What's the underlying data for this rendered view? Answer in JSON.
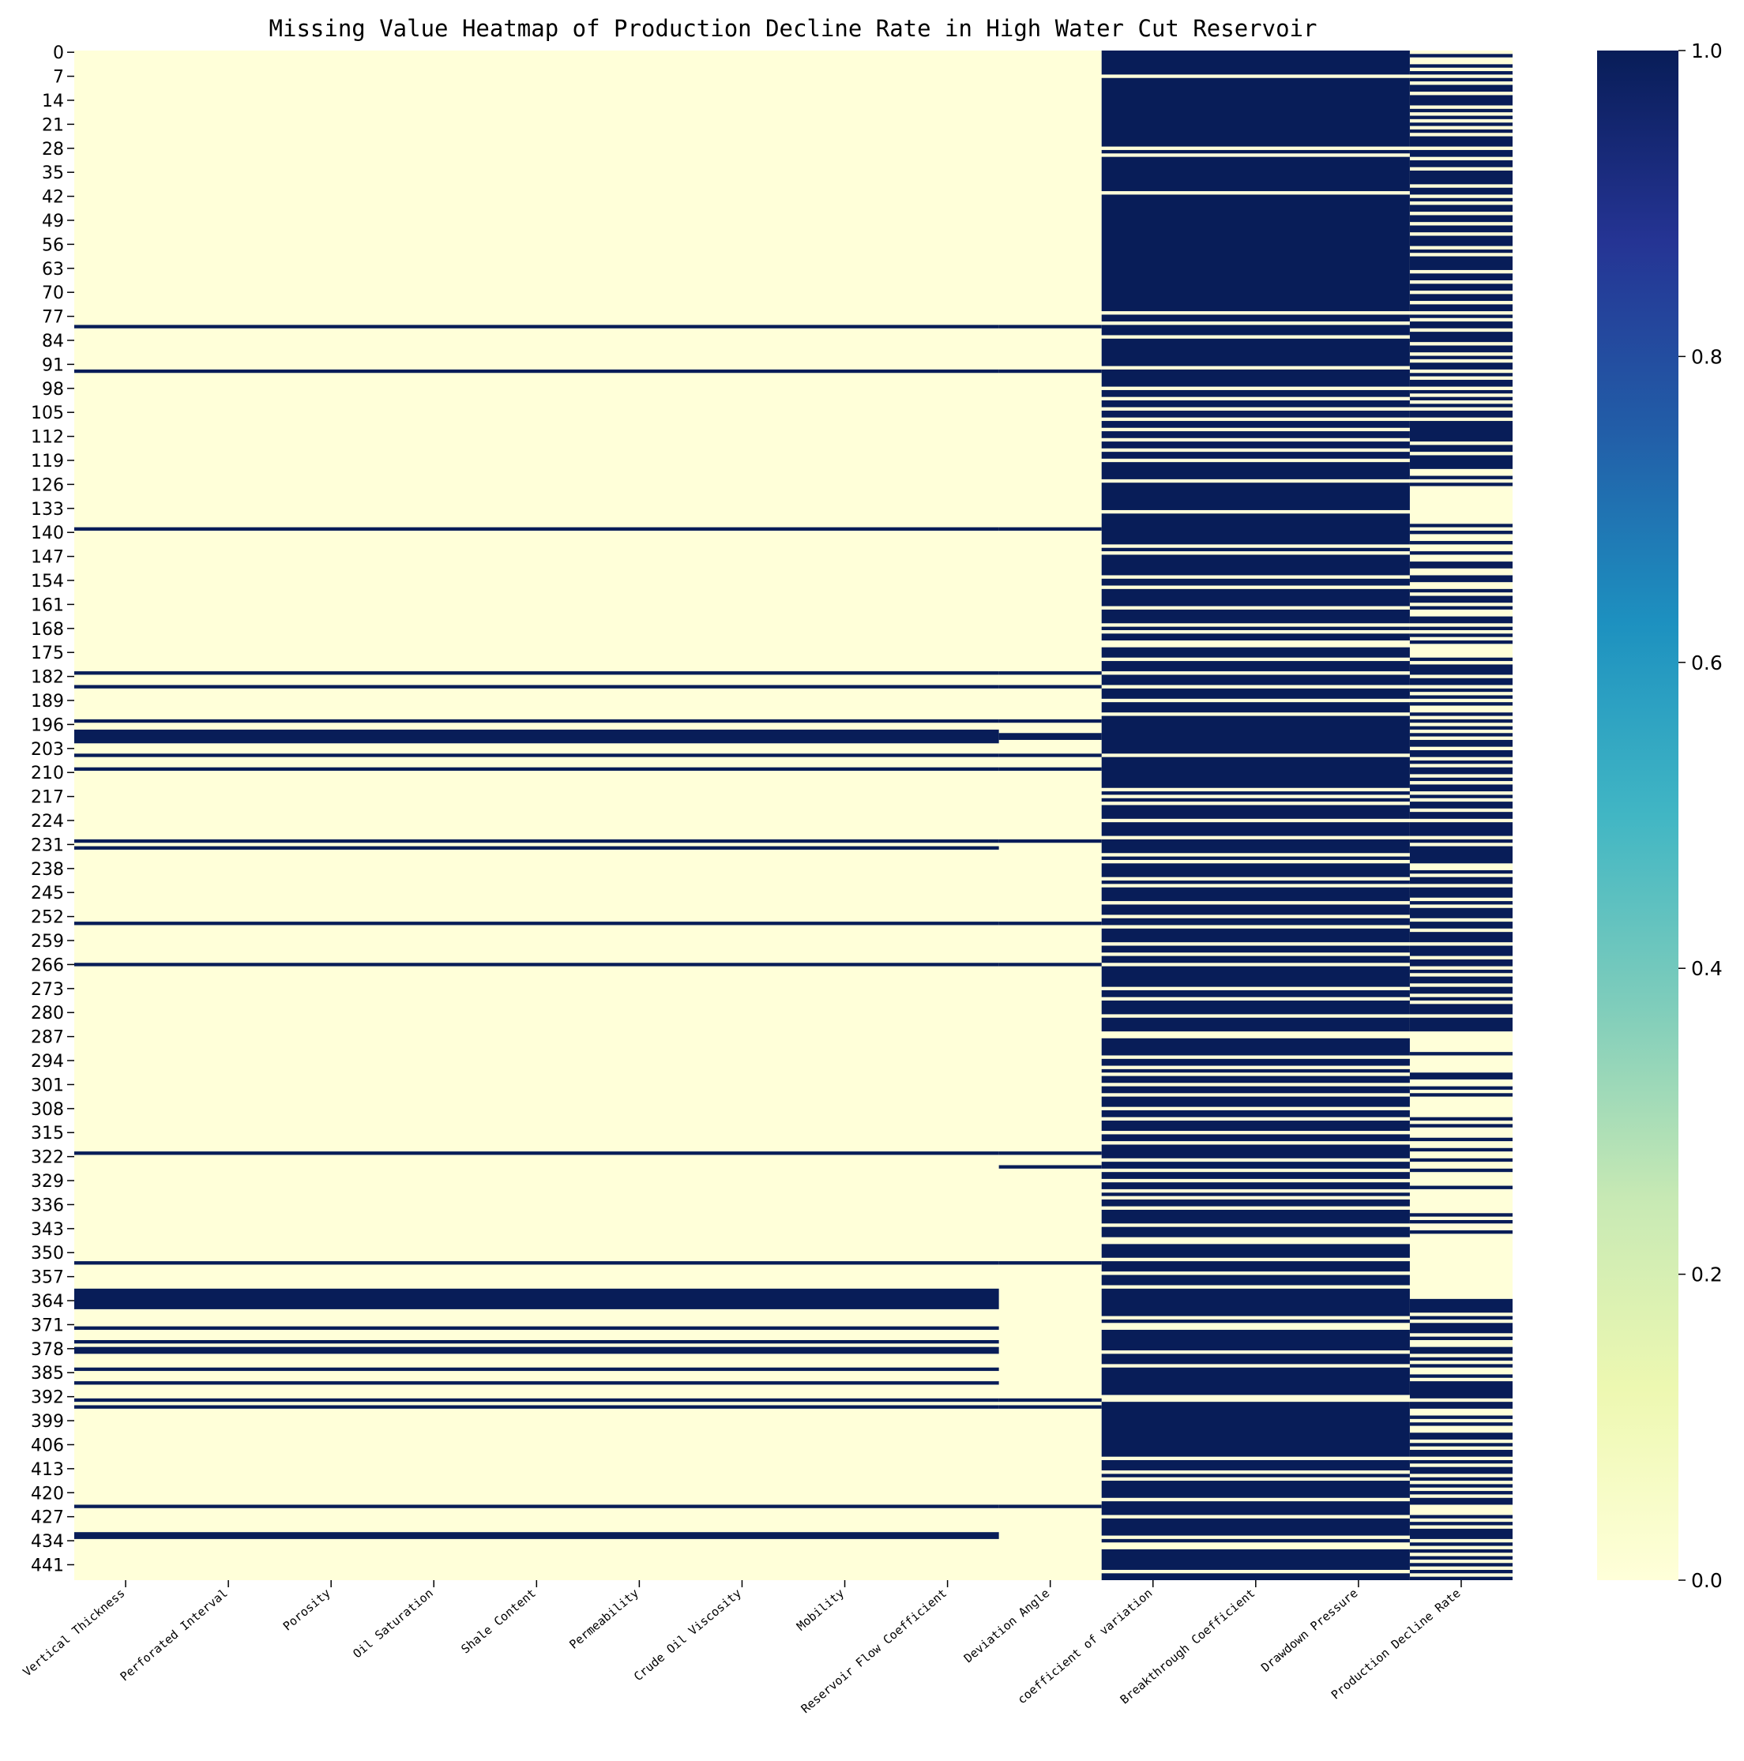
{
  "chart_data": {
    "type": "heatmap",
    "title": "Missing Value Heatmap of Production Decline Rate in High Water Cut Reservoir",
    "n_rows": 446,
    "columns": [
      "Vertical Thickness",
      "Perforated Interval",
      "Porosity",
      "Oil Saturation",
      "Shale Content",
      "Permeability",
      "Crude Oil Viscosity",
      "Mobility",
      "Reservoir Flow Coefficient",
      "Deviation Angle",
      "coefficient of variation",
      "Breakthrough Coefficient",
      "Drawdown Pressure",
      "Production Decline Rate"
    ],
    "y_tick_labels": [
      "0",
      "7",
      "14",
      "21",
      "28",
      "35",
      "42",
      "49",
      "56",
      "63",
      "70",
      "77",
      "84",
      "91",
      "98",
      "105",
      "112",
      "119",
      "126",
      "133",
      "140",
      "147",
      "154",
      "161",
      "168",
      "175",
      "182",
      "189",
      "196",
      "203",
      "210",
      "217",
      "224",
      "231",
      "238",
      "245",
      "252",
      "259",
      "266",
      "273",
      "280",
      "287",
      "294",
      "301",
      "308",
      "315",
      "322",
      "329",
      "336",
      "343",
      "350",
      "357",
      "364",
      "371",
      "378",
      "385",
      "392",
      "399",
      "406",
      "413",
      "420",
      "427",
      "434",
      "441"
    ],
    "colorbar": {
      "colormap": "YlGnBu",
      "vmin": 0.0,
      "vmax": 1.0,
      "tick_labels": [
        "0.0",
        "0.2",
        "0.4",
        "0.6",
        "0.8",
        "1.0"
      ],
      "stops": [
        "#ffffd9",
        "#edf8b1",
        "#c7e9b4",
        "#7fcdbb",
        "#41b6c4",
        "#1d91c0",
        "#225ea8",
        "#253494",
        "#081d58"
      ]
    },
    "colors": {
      "present": "#ffffd9",
      "missing": "#081d58"
    },
    "note": "Value 1 = missing, 0 = present. Each group lists [start_row, end_row] ranges of missing values.",
    "groups": [
      {
        "name": "Vertical Thickness to Reservoir Flow Coefficient",
        "columns": [
          0,
          1,
          2,
          3,
          4,
          5,
          6,
          7,
          8
        ],
        "missing": [
          [
            80,
            80
          ],
          [
            93,
            93
          ],
          [
            139,
            139
          ],
          [
            181,
            181
          ],
          [
            185,
            185
          ],
          [
            195,
            195
          ],
          [
            198,
            201
          ],
          [
            205,
            205
          ],
          [
            209,
            209
          ],
          [
            230,
            230
          ],
          [
            232,
            232
          ],
          [
            254,
            254
          ],
          [
            266,
            266
          ],
          [
            321,
            321
          ],
          [
            353,
            353
          ],
          [
            361,
            366
          ],
          [
            372,
            372
          ],
          [
            376,
            376
          ],
          [
            378,
            379
          ],
          [
            384,
            384
          ],
          [
            388,
            388
          ],
          [
            393,
            393
          ],
          [
            395,
            395
          ],
          [
            424,
            424
          ],
          [
            432,
            433
          ]
        ]
      },
      {
        "name": "Deviation Angle",
        "columns": [
          9
        ],
        "missing": [
          [
            80,
            80
          ],
          [
            93,
            93
          ],
          [
            139,
            139
          ],
          [
            181,
            181
          ],
          [
            185,
            185
          ],
          [
            195,
            195
          ],
          [
            199,
            200
          ],
          [
            205,
            205
          ],
          [
            209,
            209
          ],
          [
            230,
            230
          ],
          [
            254,
            254
          ],
          [
            266,
            266
          ],
          [
            321,
            321
          ],
          [
            325,
            325
          ],
          [
            353,
            353
          ],
          [
            393,
            393
          ],
          [
            395,
            395
          ],
          [
            424,
            424
          ]
        ]
      },
      {
        "name": "coefficient of variation to Drawdown Pressure",
        "columns": [
          10,
          11,
          12
        ],
        "missing": [
          [
            0,
            6
          ],
          [
            8,
            27
          ],
          [
            29,
            29
          ],
          [
            31,
            40
          ],
          [
            42,
            75
          ],
          [
            77,
            78
          ],
          [
            80,
            82
          ],
          [
            84,
            91
          ],
          [
            93,
            97
          ],
          [
            99,
            100
          ],
          [
            102,
            103
          ],
          [
            105,
            106
          ],
          [
            108,
            109
          ],
          [
            111,
            112
          ],
          [
            114,
            115
          ],
          [
            117,
            118
          ],
          [
            120,
            124
          ],
          [
            126,
            133
          ],
          [
            135,
            143
          ],
          [
            145,
            145
          ],
          [
            147,
            152
          ],
          [
            154,
            155
          ],
          [
            157,
            161
          ],
          [
            163,
            166
          ],
          [
            168,
            168
          ],
          [
            170,
            171
          ],
          [
            174,
            176
          ],
          [
            178,
            180
          ],
          [
            182,
            184
          ],
          [
            186,
            188
          ],
          [
            190,
            192
          ],
          [
            194,
            204
          ],
          [
            206,
            214
          ],
          [
            216,
            216
          ],
          [
            218,
            218
          ],
          [
            220,
            223
          ],
          [
            225,
            228
          ],
          [
            230,
            233
          ],
          [
            235,
            235
          ],
          [
            237,
            240
          ],
          [
            242,
            242
          ],
          [
            244,
            247
          ],
          [
            249,
            251
          ],
          [
            253,
            254
          ],
          [
            256,
            259
          ],
          [
            261,
            262
          ],
          [
            264,
            265
          ],
          [
            267,
            272
          ],
          [
            274,
            275
          ],
          [
            277,
            280
          ],
          [
            282,
            285
          ],
          [
            288,
            292
          ],
          [
            294,
            295
          ],
          [
            297,
            297
          ],
          [
            299,
            300
          ],
          [
            302,
            303
          ],
          [
            305,
            307
          ],
          [
            309,
            310
          ],
          [
            312,
            314
          ],
          [
            316,
            317
          ],
          [
            319,
            322
          ],
          [
            324,
            325
          ],
          [
            327,
            328
          ],
          [
            330,
            331
          ],
          [
            333,
            333
          ],
          [
            335,
            336
          ],
          [
            338,
            341
          ],
          [
            343,
            345
          ],
          [
            348,
            351
          ],
          [
            353,
            355
          ],
          [
            357,
            359
          ],
          [
            361,
            368
          ],
          [
            370,
            370
          ],
          [
            373,
            378
          ],
          [
            380,
            382
          ],
          [
            384,
            391
          ],
          [
            394,
            409
          ],
          [
            411,
            413
          ],
          [
            415,
            415
          ],
          [
            417,
            421
          ],
          [
            423,
            426
          ],
          [
            428,
            432
          ],
          [
            434,
            434
          ],
          [
            437,
            442
          ],
          [
            444,
            445
          ]
        ]
      },
      {
        "name": "Production Decline Rate",
        "columns": [
          13
        ],
        "missing": [
          [
            1,
            1
          ],
          [
            4,
            4
          ],
          [
            6,
            6
          ],
          [
            8,
            8
          ],
          [
            10,
            11
          ],
          [
            13,
            15
          ],
          [
            17,
            17
          ],
          [
            19,
            19
          ],
          [
            21,
            21
          ],
          [
            23,
            23
          ],
          [
            25,
            27
          ],
          [
            29,
            30
          ],
          [
            32,
            33
          ],
          [
            35,
            38
          ],
          [
            40,
            41
          ],
          [
            43,
            43
          ],
          [
            45,
            46
          ],
          [
            48,
            49
          ],
          [
            51,
            52
          ],
          [
            54,
            56
          ],
          [
            58,
            58
          ],
          [
            60,
            63
          ],
          [
            65,
            66
          ],
          [
            68,
            69
          ],
          [
            71,
            72
          ],
          [
            74,
            75
          ],
          [
            77,
            77
          ],
          [
            79,
            80
          ],
          [
            82,
            84
          ],
          [
            86,
            87
          ],
          [
            89,
            89
          ],
          [
            91,
            92
          ],
          [
            94,
            94
          ],
          [
            96,
            97
          ],
          [
            99,
            99
          ],
          [
            101,
            101
          ],
          [
            103,
            103
          ],
          [
            105,
            106
          ],
          [
            108,
            113
          ],
          [
            115,
            116
          ],
          [
            118,
            121
          ],
          [
            124,
            124
          ],
          [
            126,
            126
          ],
          [
            138,
            138
          ],
          [
            140,
            140
          ],
          [
            143,
            143
          ],
          [
            146,
            146
          ],
          [
            149,
            150
          ],
          [
            153,
            154
          ],
          [
            157,
            157
          ],
          [
            159,
            160
          ],
          [
            162,
            162
          ],
          [
            165,
            166
          ],
          [
            168,
            168
          ],
          [
            170,
            170
          ],
          [
            172,
            172
          ],
          [
            177,
            177
          ],
          [
            179,
            181
          ],
          [
            183,
            184
          ],
          [
            186,
            186
          ],
          [
            188,
            188
          ],
          [
            190,
            190
          ],
          [
            193,
            193
          ],
          [
            195,
            195
          ],
          [
            197,
            197
          ],
          [
            199,
            199
          ],
          [
            201,
            202
          ],
          [
            204,
            205
          ],
          [
            207,
            207
          ],
          [
            209,
            210
          ],
          [
            212,
            212
          ],
          [
            214,
            215
          ],
          [
            217,
            217
          ],
          [
            219,
            220
          ],
          [
            222,
            223
          ],
          [
            225,
            228
          ],
          [
            230,
            230
          ],
          [
            232,
            236
          ],
          [
            239,
            239
          ],
          [
            241,
            242
          ],
          [
            244,
            246
          ],
          [
            248,
            248
          ],
          [
            250,
            252
          ],
          [
            254,
            255
          ],
          [
            257,
            259
          ],
          [
            261,
            263
          ],
          [
            265,
            266
          ],
          [
            268,
            268
          ],
          [
            270,
            271
          ],
          [
            273,
            274
          ],
          [
            276,
            276
          ],
          [
            278,
            280
          ],
          [
            282,
            285
          ],
          [
            292,
            292
          ],
          [
            298,
            299
          ],
          [
            302,
            302
          ],
          [
            304,
            304
          ],
          [
            311,
            311
          ],
          [
            313,
            313
          ],
          [
            317,
            317
          ],
          [
            320,
            320
          ],
          [
            323,
            323
          ],
          [
            326,
            326
          ],
          [
            331,
            331
          ],
          [
            339,
            339
          ],
          [
            341,
            341
          ],
          [
            344,
            344
          ],
          [
            364,
            367
          ],
          [
            369,
            369
          ],
          [
            371,
            373
          ],
          [
            375,
            375
          ],
          [
            378,
            379
          ],
          [
            381,
            381
          ],
          [
            383,
            383
          ],
          [
            386,
            386
          ],
          [
            388,
            392
          ],
          [
            394,
            395
          ],
          [
            398,
            398
          ],
          [
            400,
            400
          ],
          [
            403,
            404
          ],
          [
            406,
            406
          ],
          [
            408,
            409
          ],
          [
            411,
            411
          ],
          [
            413,
            414
          ],
          [
            416,
            416
          ],
          [
            418,
            418
          ],
          [
            420,
            420
          ],
          [
            422,
            423
          ],
          [
            427,
            427
          ],
          [
            429,
            429
          ],
          [
            431,
            433
          ],
          [
            435,
            435
          ],
          [
            437,
            437
          ],
          [
            439,
            439
          ],
          [
            441,
            441
          ],
          [
            443,
            443
          ],
          [
            445,
            445
          ]
        ]
      }
    ]
  }
}
